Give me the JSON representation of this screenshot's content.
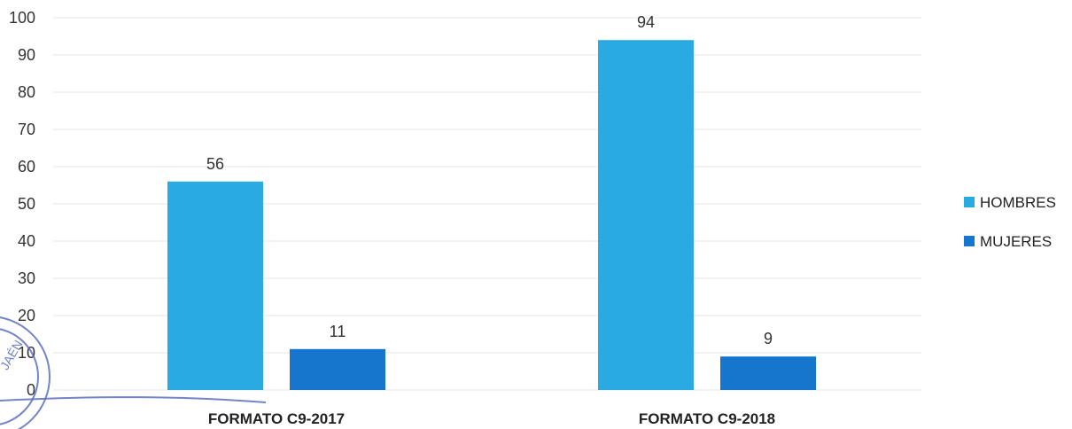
{
  "chart_data": {
    "type": "bar",
    "categories": [
      "FORMATO C9-2017",
      "FORMATO C9-2018"
    ],
    "series": [
      {
        "name": "HOMBRES",
        "values": [
          56,
          94
        ],
        "color": "#29ABE2"
      },
      {
        "name": "MUJERES",
        "values": [
          11,
          9
        ],
        "color": "#1676CE"
      }
    ],
    "ylim": [
      0,
      100
    ],
    "yticks": [
      0,
      10,
      20,
      30,
      40,
      50,
      60,
      70,
      80,
      90,
      100
    ],
    "grid": true,
    "legend": "right",
    "data_labels": true
  },
  "stamp": {
    "text": "JAÉN",
    "color": "#5a6fc0"
  }
}
